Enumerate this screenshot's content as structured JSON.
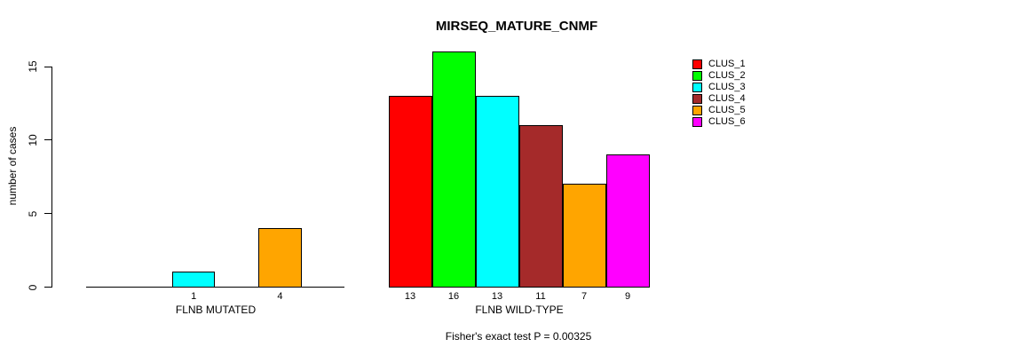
{
  "chart_data": {
    "type": "bar",
    "title": "MIRSEQ_MATURE_CNMF",
    "xlabel": "",
    "ylabel": "number of cases",
    "ylim": [
      0,
      15
    ],
    "y_ticks": [
      0,
      5,
      10,
      15
    ],
    "grid": false,
    "legend_position": "top-right",
    "categories": [
      "CLUS_1",
      "CLUS_2",
      "CLUS_3",
      "CLUS_4",
      "CLUS_5",
      "CLUS_6"
    ],
    "colors": [
      "#FF0000",
      "#00FF00",
      "#00FFFF",
      "#A52A2A",
      "#FFA500",
      "#FF00FF"
    ],
    "groups": [
      {
        "label": "FLNB MUTATED",
        "values": [
          0,
          0,
          1,
          0,
          4,
          0
        ]
      },
      {
        "label": "FLNB WILD-TYPE",
        "values": [
          13,
          16,
          13,
          11,
          7,
          9
        ]
      }
    ],
    "bar_value_labels": {
      "FLNB MUTATED": [
        "1",
        "4"
      ],
      "FLNB WILD-TYPE": [
        "13",
        "16",
        "13",
        "11",
        "7",
        "9"
      ]
    },
    "annotation": "Fisher's exact test P = 0.00325"
  }
}
